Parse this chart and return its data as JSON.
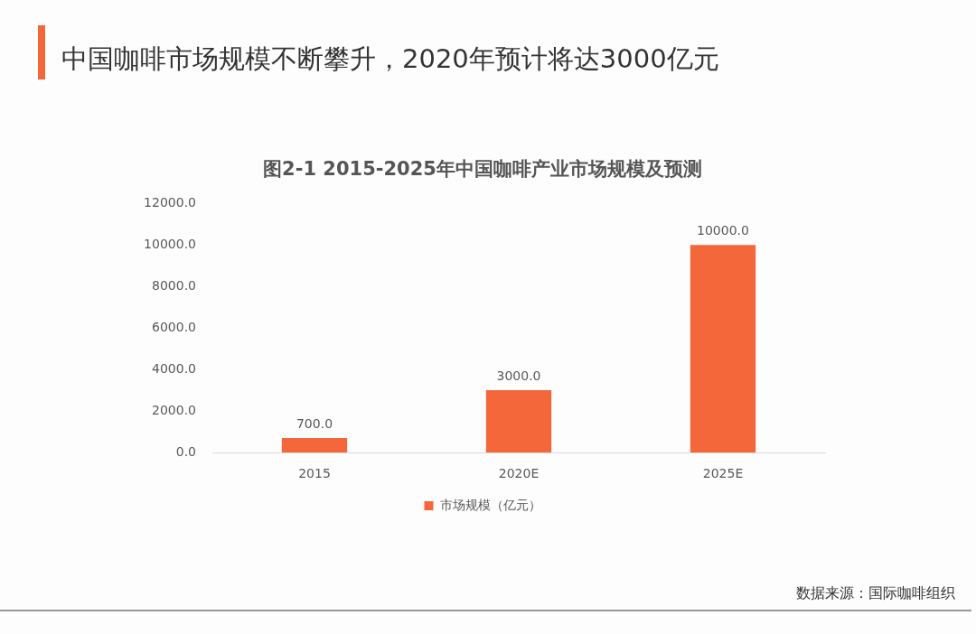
{
  "chart_data": {
    "type": "bar",
    "title": "中国咖啡市场规模不断攀升，2020年预计将达3000亿元",
    "subtitle": "图2-1 2015-2025年中国咖啡产业市场规模及预测",
    "categories": [
      "2015",
      "2020E",
      "2025E"
    ],
    "series": [
      {
        "name": "市场规模（亿元）",
        "color": "#f4673b",
        "values": [
          700,
          3000,
          10000
        ],
        "value_labels": [
          "700.0",
          "3000.0",
          "10000.0"
        ]
      }
    ],
    "ylim": [
      0,
      12000
    ],
    "yticks": [
      {
        "value": 0,
        "label": "0.0"
      },
      {
        "value": 2000,
        "label": "2000.0"
      },
      {
        "value": 4000,
        "label": "4000.0"
      },
      {
        "value": 6000,
        "label": "6000.0"
      },
      {
        "value": 8000,
        "label": "8000.0"
      },
      {
        "value": 10000,
        "label": "10000.0"
      },
      {
        "value": 12000,
        "label": "12000.0"
      }
    ],
    "grid": false,
    "legend": "bottom",
    "annotations": [
      "数据来源：国际咖啡组织"
    ]
  }
}
